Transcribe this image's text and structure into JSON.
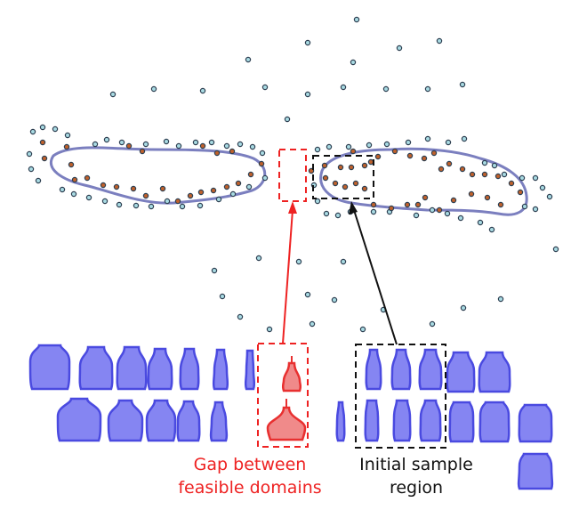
{
  "annotations": {
    "gap_line1": "Gap between",
    "gap_line2": "feasible domains",
    "sample_line1": "Initial sample",
    "sample_line2": "region"
  },
  "colors": {
    "infeasible_point": "#a9dbe3",
    "feasible_point": "#c0612b",
    "point_stroke": "#2c3e50",
    "boundary": "#7b7fbf",
    "shape_fill": "#8585f2",
    "shape_stroke": "#4a4ae0",
    "gap_fill": "#f08a8a",
    "gap_stroke": "#e83030",
    "gap_box": "#ee2222",
    "sample_box": "#111111"
  }
}
